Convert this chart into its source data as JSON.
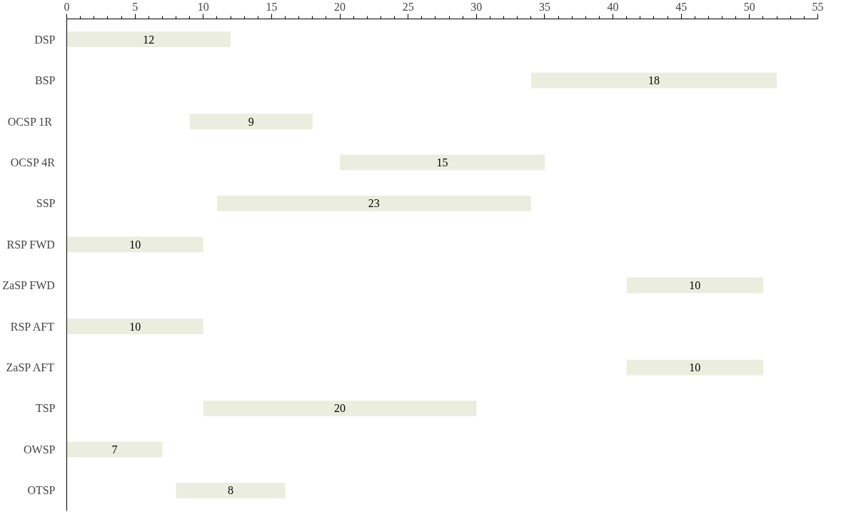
{
  "chart_data": {
    "type": "bar",
    "orientation": "horizontal",
    "categories": [
      "DSP",
      "BSP",
      "OCSP  1R",
      "OCSP 4R",
      "SSP",
      "RSP FWD",
      "ZaSP FWD",
      "RSP AFT",
      "ZaSP AFT",
      "TSP",
      "OWSP",
      "OTSP"
    ],
    "base": [
      0,
      34,
      9,
      20,
      11,
      0,
      41,
      0,
      41,
      10,
      0,
      8
    ],
    "values": [
      12,
      18,
      9,
      15,
      23,
      10,
      10,
      10,
      10,
      20,
      7,
      8
    ],
    "color": "#ebeddf",
    "xlim": [
      0,
      55
    ],
    "xticks": [
      0,
      5,
      10,
      15,
      20,
      25,
      30,
      35,
      40,
      45,
      50,
      55
    ],
    "data_labels": true,
    "grid": false
  }
}
